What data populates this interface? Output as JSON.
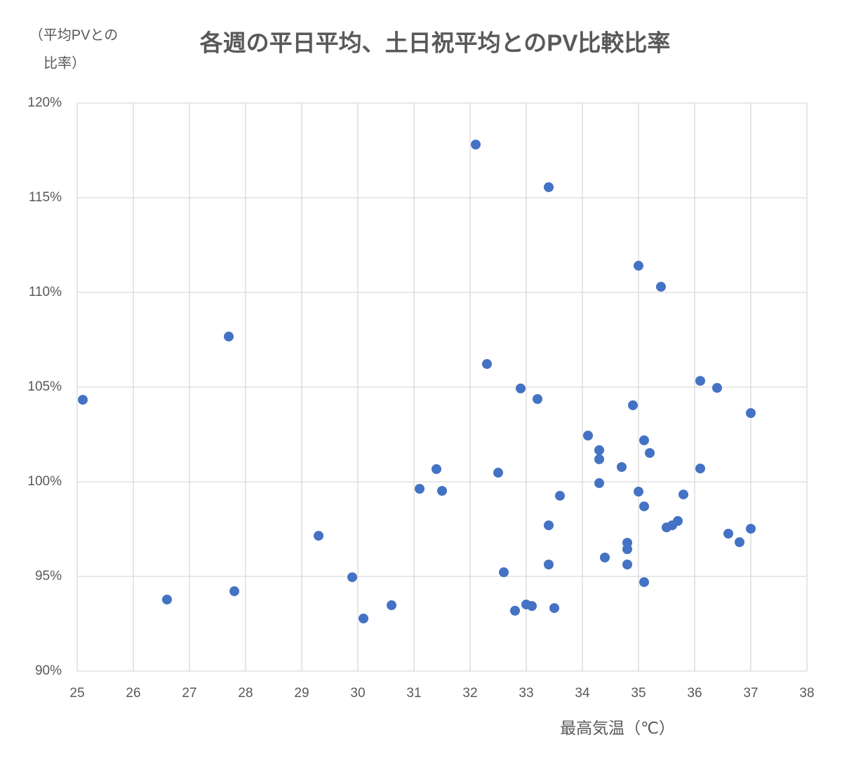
{
  "chart_data": {
    "type": "scatter",
    "title": "各週の平日平均、土日祝平均とのPV比較比率",
    "ylabel": [
      "（平均PVとの",
      "比率）"
    ],
    "xlabel": "最高気温（℃）",
    "color": "#4472c4",
    "grid": true,
    "xlim": [
      25,
      38
    ],
    "xticks": [
      25,
      26,
      27,
      28,
      29,
      30,
      31,
      32,
      33,
      34,
      35,
      36,
      37,
      38
    ],
    "ylim": [
      90,
      120
    ],
    "yticks": [
      {
        "value": 90,
        "label": "90%"
      },
      {
        "value": 95,
        "label": "95%"
      },
      {
        "value": 100,
        "label": "100%"
      },
      {
        "value": 105,
        "label": "105%"
      },
      {
        "value": 110,
        "label": "110%"
      },
      {
        "value": 115,
        "label": "115%"
      },
      {
        "value": 120,
        "label": "120%"
      }
    ],
    "x": [
      25.1,
      26.6,
      27.7,
      27.8,
      29.3,
      29.9,
      30.1,
      30.6,
      31.1,
      31.4,
      31.5,
      32.1,
      32.3,
      32.5,
      32.6,
      32.8,
      32.9,
      33.0,
      33.1,
      33.2,
      33.4,
      33.4,
      33.4,
      33.5,
      33.6,
      34.1,
      34.3,
      34.3,
      34.3,
      34.4,
      34.7,
      34.8,
      34.8,
      34.8,
      34.9,
      35.0,
      35.0,
      35.1,
      35.1,
      35.1,
      35.2,
      35.4,
      35.5,
      35.6,
      35.7,
      35.8,
      36.1,
      36.1,
      36.4,
      36.6,
      36.8,
      37.0,
      37.0
    ],
    "values": [
      104.33,
      93.78,
      107.67,
      94.22,
      97.15,
      94.96,
      92.78,
      93.48,
      99.63,
      100.67,
      99.52,
      117.81,
      106.22,
      100.48,
      95.22,
      93.19,
      104.93,
      93.52,
      93.44,
      104.37,
      115.56,
      97.7,
      95.63,
      93.33,
      99.26,
      102.44,
      101.67,
      101.19,
      99.93,
      96.0,
      100.78,
      96.78,
      96.44,
      95.63,
      104.04,
      111.41,
      99.48,
      102.19,
      98.7,
      94.7,
      101.52,
      110.3,
      97.59,
      97.7,
      97.93,
      99.33,
      105.33,
      100.7,
      104.96,
      97.26,
      96.81,
      103.63,
      97.52
    ]
  }
}
